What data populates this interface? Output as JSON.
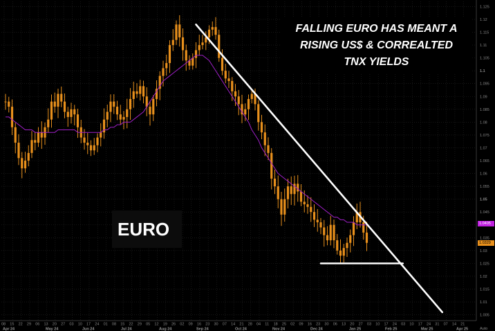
{
  "annotation": {
    "lines": [
      "FALLING EURO HAS MEANT A",
      "RISING US$ & CORREALTED",
      "TNX YIELDS"
    ]
  },
  "series_label": "EURO",
  "colors": {
    "background": "#000000",
    "price": "#e8901c",
    "moving_average": "#a020c8",
    "trend_line": "#ffffff",
    "grid": "#262626"
  },
  "price_badges": {
    "ma": "1.0405",
    "price": "1.0329"
  },
  "chart_data": {
    "type": "line",
    "title": "",
    "ylim": [
      1.003,
      1.127
    ],
    "y_ticks": [
      1.005,
      1.01,
      1.015,
      1.02,
      1.025,
      1.03,
      1.035,
      1.04,
      1.045,
      1.05,
      1.055,
      1.06,
      1.065,
      1.07,
      1.075,
      1.08,
      1.085,
      1.09,
      1.095,
      1.1,
      1.105,
      1.11,
      1.115,
      1.12,
      1.125
    ],
    "y_tick_labels": [
      "1.005",
      "1.01",
      "1.015",
      "1.02",
      "1.025",
      "1.03",
      "1.035",
      "1.04",
      "1.045",
      "1.05",
      "1.055",
      "1.06",
      "1.065",
      "1.07",
      "1.075",
      "1.08",
      "1.085",
      "1.09",
      "1.095",
      "1.1",
      "1.105",
      "1.11",
      "1.115",
      "1.12",
      "1.125"
    ],
    "y_bold_ticks": [
      "1.05",
      "1.1"
    ],
    "x_day_labels": [
      "08",
      "15",
      "22",
      "29",
      "06",
      "13",
      "20",
      "27",
      "03",
      "10",
      "17",
      "24",
      "01",
      "08",
      "15",
      "22",
      "29",
      "05",
      "12",
      "19",
      "26",
      "02",
      "09",
      "16",
      "23",
      "30",
      "07",
      "14",
      "21",
      "28",
      "04",
      "11",
      "18",
      "25",
      "02",
      "09",
      "16",
      "23",
      "30",
      "06",
      "13",
      "20",
      "27",
      "03",
      "10",
      "17",
      "24",
      "03",
      "10",
      "17",
      "24",
      "31",
      "07",
      "14",
      "21"
    ],
    "x_month_labels": [
      "Apr 24",
      "May 24",
      "Jun 24",
      "Jul 24",
      "Aug 24",
      "Sep 24",
      "Oct 24",
      "Nov 24",
      "Dec 24",
      "Jan 25",
      "Feb 25",
      "Mar 25",
      "Apr 25"
    ],
    "corner_label": "Auto",
    "series": [
      {
        "name": "EURO",
        "values": [
          1.088,
          1.086,
          1.078,
          1.072,
          1.066,
          1.062,
          1.065,
          1.068,
          1.073,
          1.072,
          1.076,
          1.074,
          1.078,
          1.081,
          1.088,
          1.086,
          1.091,
          1.088,
          1.084,
          1.082,
          1.085,
          1.083,
          1.078,
          1.074,
          1.072,
          1.071,
          1.069,
          1.071,
          1.074,
          1.076,
          1.081,
          1.084,
          1.088,
          1.086,
          1.083,
          1.081,
          1.082,
          1.085,
          1.089,
          1.092,
          1.091,
          1.094,
          1.09,
          1.086,
          1.083,
          1.089,
          1.093,
          1.098,
          1.101,
          1.103,
          1.11,
          1.112,
          1.118,
          1.113,
          1.108,
          1.104,
          1.102,
          1.105,
          1.108,
          1.11,
          1.111,
          1.113,
          1.116,
          1.117,
          1.114,
          1.105,
          1.1,
          1.097,
          1.096,
          1.092,
          1.09,
          1.087,
          1.083,
          1.085,
          1.089,
          1.091,
          1.087,
          1.08,
          1.076,
          1.071,
          1.068,
          1.058,
          1.055,
          1.05,
          1.044,
          1.05,
          1.055,
          1.052,
          1.056,
          1.053,
          1.049,
          1.048,
          1.047,
          1.045,
          1.042,
          1.041,
          1.039,
          1.036,
          1.034,
          1.04,
          1.034,
          1.03,
          1.028,
          1.031,
          1.033,
          1.036,
          1.041,
          1.045,
          1.041,
          1.037,
          1.033
        ]
      },
      {
        "name": "Moving average",
        "values": [
          1.082,
          1.082,
          1.081,
          1.08,
          1.079,
          1.078,
          1.077,
          1.077,
          1.077,
          1.076,
          1.076,
          1.076,
          1.076,
          1.076,
          1.076,
          1.076,
          1.077,
          1.077,
          1.077,
          1.077,
          1.077,
          1.077,
          1.076,
          1.076,
          1.076,
          1.076,
          1.076,
          1.076,
          1.076,
          1.076,
          1.077,
          1.077,
          1.078,
          1.078,
          1.079,
          1.079,
          1.08,
          1.08,
          1.08,
          1.081,
          1.082,
          1.083,
          1.084,
          1.086,
          1.088,
          1.09,
          1.092,
          1.094,
          1.096,
          1.097,
          1.098,
          1.099,
          1.1,
          1.101,
          1.102,
          1.103,
          1.104,
          1.105,
          1.106,
          1.106,
          1.106,
          1.105,
          1.104,
          1.102,
          1.1,
          1.098,
          1.096,
          1.094,
          1.092,
          1.09,
          1.088,
          1.086,
          1.084,
          1.082,
          1.08,
          1.077,
          1.075,
          1.073,
          1.07,
          1.068,
          1.066,
          1.064,
          1.062,
          1.06,
          1.059,
          1.058,
          1.057,
          1.056,
          1.055,
          1.054,
          1.053,
          1.052,
          1.051,
          1.05,
          1.049,
          1.048,
          1.047,
          1.046,
          1.045,
          1.044,
          1.043,
          1.043,
          1.042,
          1.042,
          1.041,
          1.041,
          1.041,
          1.04,
          1.04,
          1.04,
          1.04
        ]
      }
    ],
    "trend_lines": [
      {
        "name": "downtrend",
        "from": [
          58,
          1.118
        ],
        "to": [
          133,
          1.006
        ]
      },
      {
        "name": "support",
        "from": [
          96,
          1.025
        ],
        "to": [
          121,
          1.025
        ]
      }
    ],
    "grid": true,
    "legend": "none"
  }
}
